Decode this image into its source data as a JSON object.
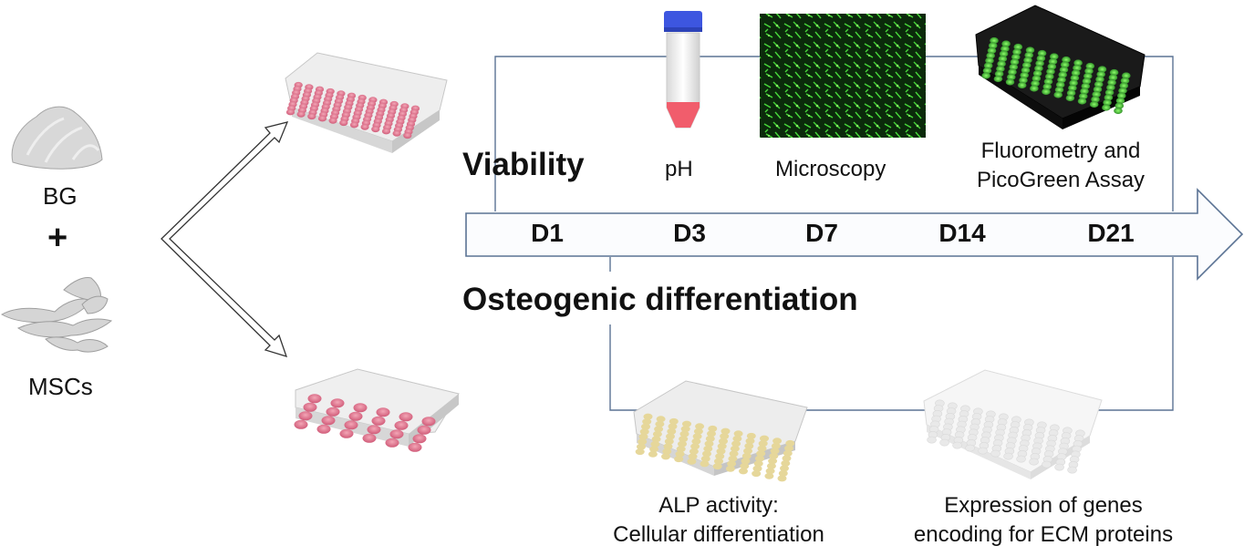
{
  "left": {
    "material_label": "BG",
    "plus_sign": "+",
    "cell_label": "MSCs"
  },
  "viability": {
    "heading": "Viability",
    "assays": [
      {
        "label": "pH"
      },
      {
        "label": "Microscopy"
      },
      {
        "label_line1": "Fluorometry and",
        "label_line2": "PicoGreen Assay"
      }
    ]
  },
  "timeline": {
    "days": [
      "D1",
      "D3",
      "D7",
      "D14",
      "D21"
    ]
  },
  "osteogenic": {
    "heading": "Osteogenic differentiation",
    "assays": [
      {
        "label_line1": "ALP activity:",
        "label_line2": "Cellular differentiation"
      },
      {
        "label_line1": "Expression of genes",
        "label_line2": "encoding for ECM proteins"
      }
    ]
  },
  "colors": {
    "connector_line": "#5b7394",
    "well_pink": "#e07890",
    "well_green": "#3fd63a",
    "tube_cap": "#3d56e0",
    "alp_well": "#e6d79a"
  }
}
